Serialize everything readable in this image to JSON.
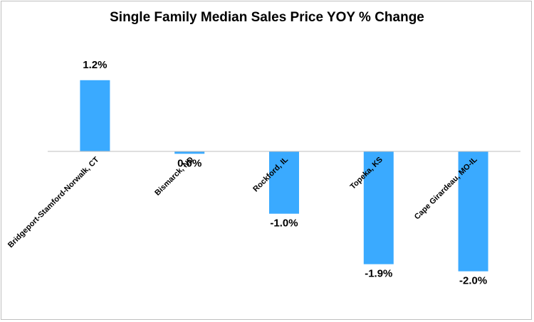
{
  "chart_data": {
    "type": "bar",
    "title": "Single Family Median Sales Price YOY % Change",
    "categories": [
      "Bridgeport-Stamford-Norwalk, CT",
      "Bismarck, ND",
      "Rockford, IL",
      "Topeka, KS",
      "Cape Girardeau, MO-IL"
    ],
    "values": [
      1.2,
      -0.04,
      -1.05,
      -1.9,
      -2.02
    ],
    "data_labels": [
      "1.2%",
      "0.0%",
      "-1.0%",
      "-1.9%",
      "-2.0%"
    ],
    "xlabel": "",
    "ylabel": "",
    "ylim": [
      -2.4,
      1.6
    ],
    "grid": false,
    "legend": "none",
    "bar_color": "#3aaaff",
    "axis_color": "#bfbfbf"
  }
}
